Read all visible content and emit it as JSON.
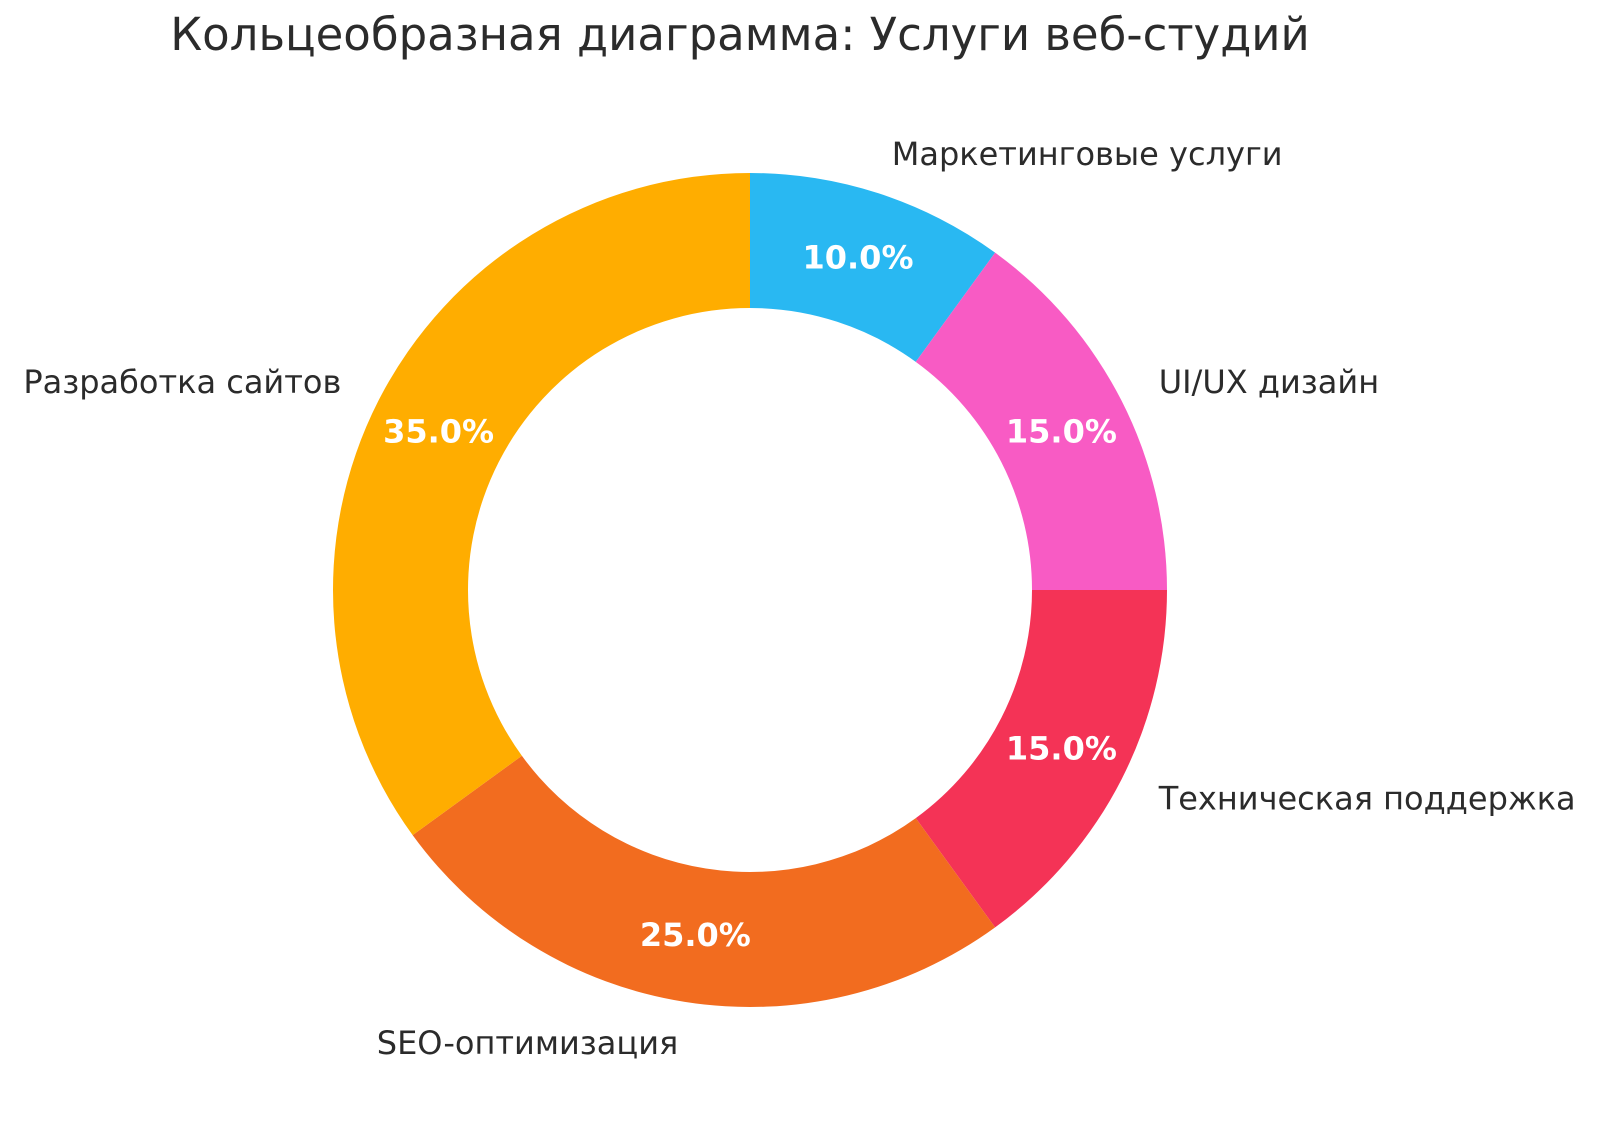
{
  "chart_data": {
    "type": "pie",
    "subtype": "donut",
    "title": "Кольцеобразная диаграмма: Услуги веб-студий",
    "categories": [
      "Маркетинговые услуги",
      "UI/UX дизайн",
      "Техническая поддержка",
      "SEO-оптимизация",
      "Разработка сайтов"
    ],
    "values": [
      10.0,
      15.0,
      15.0,
      25.0,
      35.0
    ],
    "percent_labels": [
      "10.0%",
      "15.0%",
      "15.0%",
      "25.0%",
      "35.0%"
    ],
    "colors": [
      "#29B8F2",
      "#F85BC4",
      "#F43356",
      "#F26C1F",
      "#FFAD00"
    ],
    "hole": 0.676,
    "start_angle": "top",
    "direction": "clockwise",
    "legend_position": "none",
    "background_color": "#FFFFFF",
    "label_color": "#2B2B2B",
    "percent_label_color": "#FFFFFF",
    "title_color": "#2B2B2B"
  }
}
